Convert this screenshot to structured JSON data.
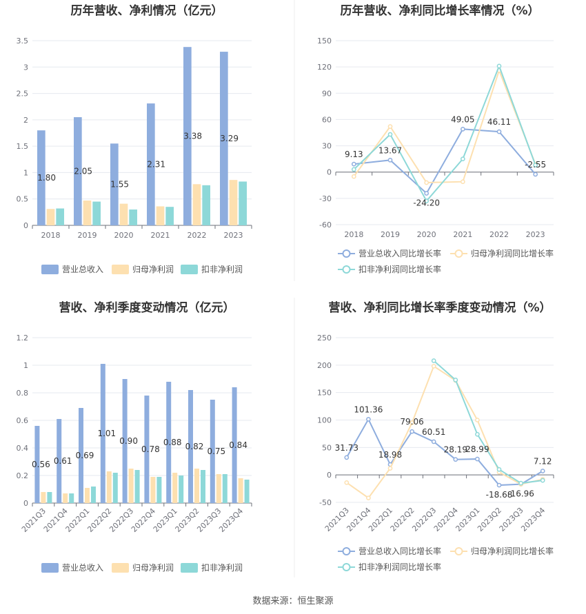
{
  "colors": {
    "revenue": "#8eadde",
    "net_profit": "#fde0b0",
    "deducted_profit": "#8dd8d8",
    "grid": "#e6e9ef",
    "axis": "#6e7079",
    "divider": "#eeeeee"
  },
  "legend": {
    "revenue": "营业总收入",
    "net_profit": "归母净利润",
    "deducted_profit": "扣非净利润",
    "revenue_growth": "营业总收入同比增长率",
    "net_profit_growth": "归母净利润同比增长率",
    "deducted_profit_growth": "扣非净利润同比增长率"
  },
  "source": "数据来源：恒生聚源",
  "chart_data": [
    {
      "type": "bar",
      "title": "历年营收、净利情况（亿元）",
      "categories": [
        "2018",
        "2019",
        "2020",
        "2021",
        "2022",
        "2023"
      ],
      "ylim": [
        0,
        3.5
      ],
      "yticks": [
        "0",
        "0.5",
        "1",
        "1.5",
        "2",
        "2.5",
        "3",
        "3.5"
      ],
      "series": [
        {
          "name": "营业总收入",
          "values": [
            1.8,
            2.05,
            1.55,
            2.31,
            3.38,
            3.29
          ],
          "labels": [
            "1.80",
            "2.05",
            "1.55",
            "2.31",
            "3.38",
            "3.29"
          ]
        },
        {
          "name": "归母净利润",
          "values": [
            0.31,
            0.47,
            0.41,
            0.36,
            0.78,
            0.86
          ]
        },
        {
          "name": "扣非净利润",
          "values": [
            0.32,
            0.45,
            0.3,
            0.35,
            0.76,
            0.83
          ]
        }
      ],
      "legend_position": "bottom"
    },
    {
      "type": "line",
      "title": "历年营收、净利同比增长率情况（%）",
      "categories": [
        "2018",
        "2019",
        "2020",
        "2021",
        "2022",
        "2023"
      ],
      "ylim": [
        -60,
        150
      ],
      "yticks": [
        "-60",
        "-30",
        "0",
        "30",
        "60",
        "90",
        "120",
        "150"
      ],
      "series": [
        {
          "name": "营业总收入同比增长率",
          "values": [
            9.13,
            13.67,
            -24.2,
            49.05,
            46.11,
            -2.55
          ],
          "labels": [
            "9.13",
            "13.67",
            "-24.20",
            "49.05",
            "46.11",
            "-2.55"
          ]
        },
        {
          "name": "归母净利润同比增长率",
          "values": [
            -5,
            52,
            -12,
            -11,
            116,
            9
          ]
        },
        {
          "name": "扣非净利润同比增长率",
          "values": [
            3,
            43,
            -33,
            15,
            121,
            8
          ]
        }
      ],
      "legend_position": "bottom"
    },
    {
      "type": "bar",
      "title": "营收、净利季度变动情况（亿元）",
      "categories": [
        "2021Q3",
        "2021Q4",
        "2022Q1",
        "2022Q2",
        "2022Q3",
        "2022Q4",
        "2023Q1",
        "2023Q2",
        "2023Q3",
        "2023Q4"
      ],
      "ylim": [
        0,
        1.2
      ],
      "yticks": [
        "0",
        "0.2",
        "0.4",
        "0.6",
        "0.8",
        "1",
        "1.2"
      ],
      "series": [
        {
          "name": "营业总收入",
          "values": [
            0.56,
            0.61,
            0.69,
            1.01,
            0.9,
            0.78,
            0.88,
            0.82,
            0.75,
            0.84
          ],
          "labels": [
            "0.56",
            "0.61",
            "0.69",
            "1.01",
            "0.90",
            "0.78",
            "0.88",
            "0.82",
            "0.75",
            "0.84"
          ]
        },
        {
          "name": "归母净利润",
          "values": [
            0.08,
            0.07,
            0.11,
            0.23,
            0.25,
            0.19,
            0.22,
            0.25,
            0.21,
            0.18
          ]
        },
        {
          "name": "扣非净利润",
          "values": [
            0.08,
            0.07,
            0.12,
            0.22,
            0.24,
            0.19,
            0.2,
            0.24,
            0.21,
            0.17
          ]
        }
      ],
      "legend_position": "bottom"
    },
    {
      "type": "line",
      "title": "营收、净利同比增长率季度变动情况（%）",
      "categories": [
        "2021Q3",
        "2021Q4",
        "2022Q1",
        "2022Q2",
        "2022Q3",
        "2022Q4",
        "2023Q1",
        "2023Q2",
        "2023Q3",
        "2023Q4"
      ],
      "ylim": [
        -50,
        250
      ],
      "yticks": [
        "-50",
        "0",
        "50",
        "100",
        "150",
        "200",
        "250"
      ],
      "series": [
        {
          "name": "营业总收入同比增长率",
          "values": [
            31.73,
            101.36,
            18.98,
            79.06,
            60.51,
            28.19,
            28.99,
            -18.68,
            -16.96,
            7.12
          ],
          "labels": [
            "31.73",
            "101.36",
            "18.98",
            "79.06",
            "60.51",
            "28.19",
            "28.99",
            "-18.68",
            "-16.96",
            "7.12"
          ]
        },
        {
          "name": "归母净利润同比增长率",
          "values": [
            -14,
            -42,
            12,
            95,
            198,
            172,
            100,
            5,
            -17,
            -8
          ]
        },
        {
          "name": "扣非净利润同比增长率",
          "values": [
            null,
            null,
            null,
            null,
            208,
            173,
            74,
            10,
            -15,
            -10
          ]
        }
      ],
      "legend_position": "bottom"
    }
  ]
}
